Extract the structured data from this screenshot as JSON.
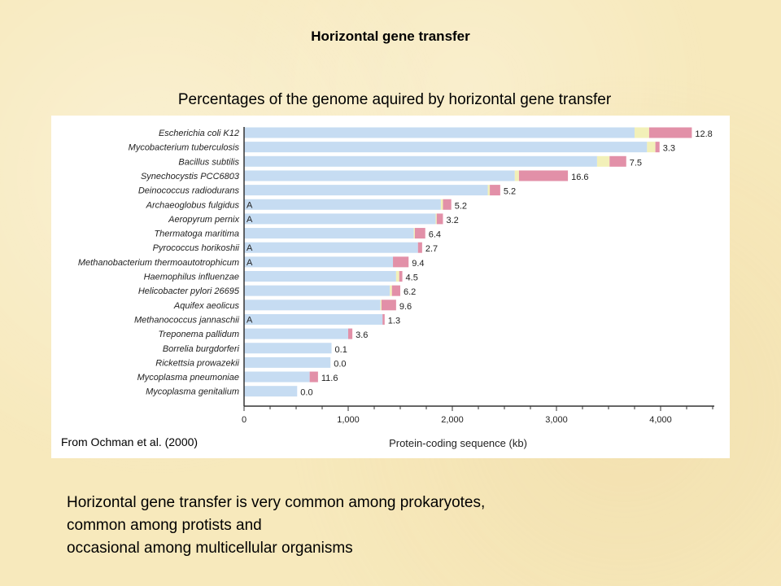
{
  "slide": {
    "title": "Horizontal gene transfer",
    "subtitle": "Percentages of the genome aquired by horizontal gene transfer",
    "credit": "From Ochman et al. (2000)",
    "bottom_lines": [
      "Horizontal gene transfer is very common among prokaryotes,",
      "common among protists and",
      "occasional among multicellular organisms"
    ]
  },
  "chart_data": {
    "type": "bar",
    "orientation": "horizontal",
    "stacked": true,
    "xlabel": "Protein-coding sequence (kb)",
    "xlim": [
      0,
      4500
    ],
    "xticks": [
      0,
      1000,
      2000,
      3000,
      4000
    ],
    "xtick_labels": [
      "0",
      "1,000",
      "2,000",
      "3,000",
      "4,000"
    ],
    "colors": {
      "native": "#c6dcf2",
      "yellow": "#f2f0b8",
      "pink": "#e290a8"
    },
    "organisms": [
      {
        "name": "Escherichia coli K12",
        "native": 3750,
        "yellow": 140,
        "pink": 410,
        "label": "12.8",
        "tag": ""
      },
      {
        "name": "Mycobacterium tuberculosis",
        "native": 3870,
        "yellow": 80,
        "pink": 40,
        "label": "3.3",
        "tag": ""
      },
      {
        "name": "Bacillus subtilis",
        "native": 3390,
        "yellow": 120,
        "pink": 160,
        "label": "7.5",
        "tag": ""
      },
      {
        "name": "Synechocystis PCC6803",
        "native": 2600,
        "yellow": 40,
        "pink": 470,
        "label": "16.6",
        "tag": ""
      },
      {
        "name": "Deinococcus radiodurans",
        "native": 2340,
        "yellow": 20,
        "pink": 100,
        "label": "5.2",
        "tag": ""
      },
      {
        "name": "Archaeoglobus fulgidus",
        "native": 1890,
        "yellow": 20,
        "pink": 80,
        "label": "5.2",
        "tag": "A"
      },
      {
        "name": "Aeropyrum pernix",
        "native": 1840,
        "yellow": 10,
        "pink": 60,
        "label": "3.2",
        "tag": "A"
      },
      {
        "name": "Thermatoga maritima",
        "native": 1630,
        "yellow": 10,
        "pink": 100,
        "label": "6.4",
        "tag": ""
      },
      {
        "name": "Pyrococcus horikoshii",
        "native": 1670,
        "yellow": 0,
        "pink": 40,
        "label": "2.7",
        "tag": "A"
      },
      {
        "name": "Methanobacterium thermoautotrophicum",
        "native": 1430,
        "yellow": 0,
        "pink": 150,
        "label": "9.4",
        "tag": "A"
      },
      {
        "name": "Haemophilus influenzae",
        "native": 1460,
        "yellow": 30,
        "pink": 30,
        "label": "4.5",
        "tag": ""
      },
      {
        "name": "Helicobacter pylori 26695",
        "native": 1400,
        "yellow": 20,
        "pink": 80,
        "label": "6.2",
        "tag": ""
      },
      {
        "name": "Aquifex aeolicus",
        "native": 1310,
        "yellow": 10,
        "pink": 140,
        "label": "9.6",
        "tag": ""
      },
      {
        "name": "Methanococcus jannaschii",
        "native": 1330,
        "yellow": 0,
        "pink": 20,
        "label": "1.3",
        "tag": "A"
      },
      {
        "name": "Treponema pallidum",
        "native": 1000,
        "yellow": 0,
        "pink": 40,
        "label": "3.6",
        "tag": ""
      },
      {
        "name": "Borrelia burgdorferi",
        "native": 840,
        "yellow": 0,
        "pink": 0,
        "label": "0.1",
        "tag": ""
      },
      {
        "name": "Rickettsia prowazekii",
        "native": 830,
        "yellow": 0,
        "pink": 0,
        "label": "0.0",
        "tag": ""
      },
      {
        "name": "Mycoplasma pneumoniae",
        "native": 630,
        "yellow": 0,
        "pink": 80,
        "label": "11.6",
        "tag": ""
      },
      {
        "name": "Mycoplasma genitalium",
        "native": 510,
        "yellow": 0,
        "pink": 0,
        "label": "0.0",
        "tag": ""
      }
    ]
  }
}
